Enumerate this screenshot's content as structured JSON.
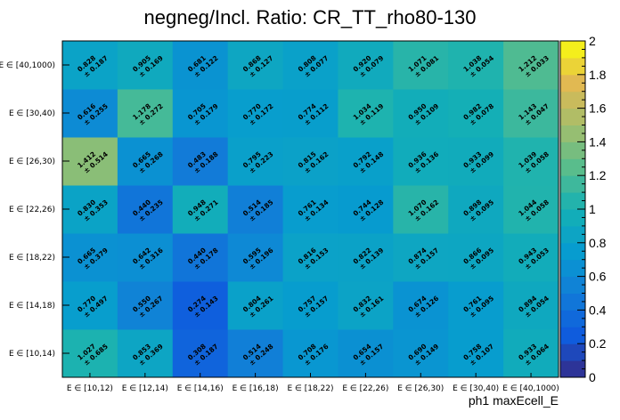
{
  "chart_data": {
    "type": "heatmap",
    "title": "negneg/Incl. Ratio: CR_TT_rho80-130",
    "xlabel": "ph1 maxEcell_E",
    "ylabel": "",
    "x_categories": [
      "E ∈ [10,12)",
      "E ∈ [12,14)",
      "E ∈ [14,16)",
      "E ∈ [16,18)",
      "E ∈ [18,22)",
      "E ∈ [22,26)",
      "E ∈ [26,30)",
      "E ∈ [30,40)",
      "E ∈ [40,1000)"
    ],
    "y_categories": [
      "E ∈ [10,14)",
      "E ∈ [14,18)",
      "E ∈ [18,22)",
      "E ∈ [22,26)",
      "E ∈ [26,30)",
      "E ∈ [30,40)",
      "E ∈ [40,1000)"
    ],
    "zlim": [
      0,
      2
    ],
    "z_ticks": [
      "0",
      "0.2",
      "0.4",
      "0.6",
      "0.8",
      "1",
      "1.2",
      "1.4",
      "1.6",
      "1.8",
      "2"
    ],
    "values": [
      [
        1.027,
        0.853,
        0.308,
        0.514,
        0.708,
        0.654,
        0.69,
        0.758,
        0.933
      ],
      [
        0.77,
        0.55,
        0.274,
        0.804,
        0.757,
        0.832,
        0.674,
        0.761,
        0.894
      ],
      [
        0.665,
        0.642,
        0.44,
        0.595,
        0.816,
        0.822,
        0.874,
        0.866,
        0.943
      ],
      [
        0.83,
        0.44,
        0.948,
        0.514,
        0.761,
        0.744,
        1.07,
        0.898,
        1.044
      ],
      [
        1.412,
        0.665,
        0.483,
        0.795,
        0.815,
        0.792,
        0.936,
        0.933,
        1.039
      ],
      [
        0.616,
        1.178,
        0.705,
        0.77,
        0.774,
        1.034,
        0.95,
        0.982,
        1.143
      ],
      [
        0.828,
        0.905,
        0.681,
        0.868,
        0.808,
        0.92,
        1.071,
        1.038,
        1.212
      ]
    ],
    "errors": [
      [
        0.685,
        0.369,
        0.187,
        0.248,
        0.176,
        0.157,
        0.149,
        0.107,
        0.064
      ],
      [
        0.497,
        0.267,
        0.143,
        0.261,
        0.157,
        0.161,
        0.126,
        0.095,
        0.054
      ],
      [
        0.379,
        0.316,
        0.178,
        0.196,
        0.153,
        0.139,
        0.157,
        0.095,
        0.053
      ],
      [
        0.353,
        0.235,
        0.271,
        0.185,
        0.134,
        0.128,
        0.162,
        0.095,
        0.058
      ],
      [
        0.514,
        0.268,
        0.188,
        0.223,
        0.162,
        0.148,
        0.136,
        0.099,
        0.058
      ],
      [
        0.255,
        0.272,
        0.179,
        0.172,
        0.112,
        0.119,
        0.109,
        0.078,
        0.047
      ],
      [
        0.187,
        0.169,
        0.122,
        0.127,
        0.077,
        0.079,
        0.081,
        0.054,
        0.033
      ]
    ],
    "grid": false
  }
}
